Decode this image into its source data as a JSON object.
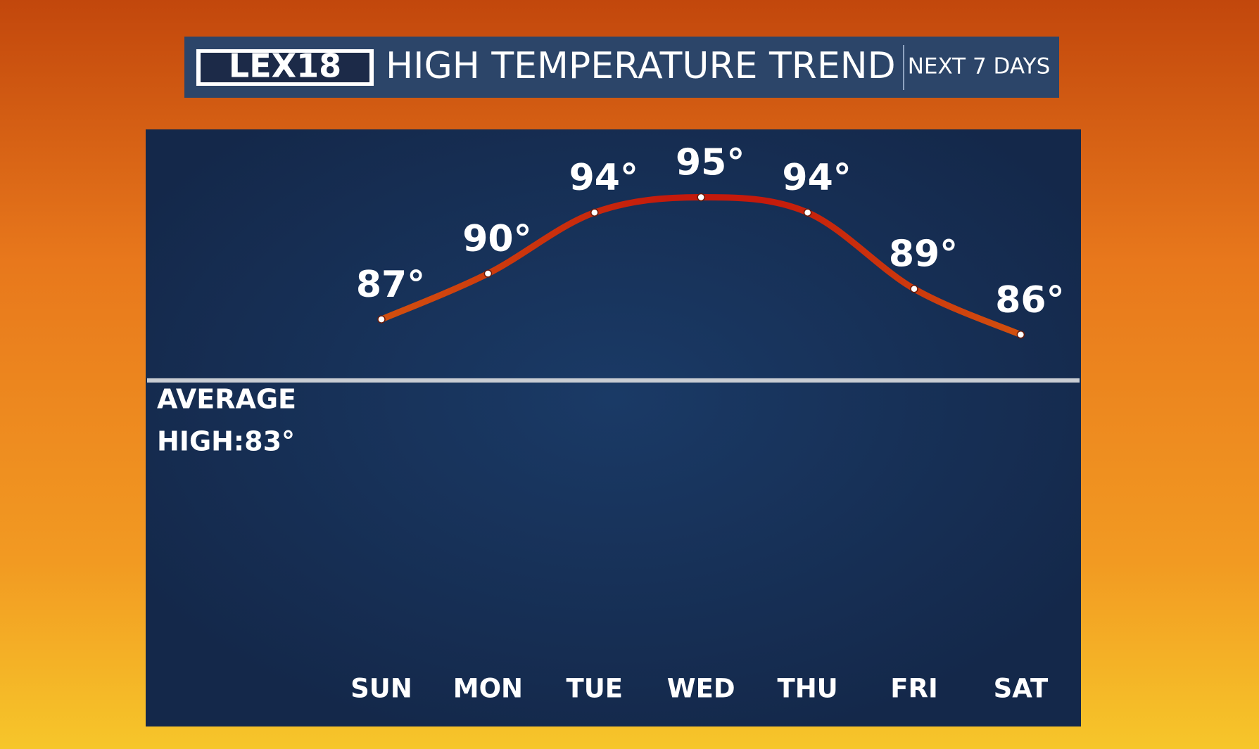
{
  "logo": "LEX18",
  "chart_data": {
    "type": "line",
    "title": "HIGH TEMPERATURE TREND",
    "subtitle": "NEXT 7 DAYS",
    "categories": [
      "SUN",
      "MON",
      "TUE",
      "WED",
      "THU",
      "FRI",
      "SAT"
    ],
    "values": [
      87,
      90,
      94,
      95,
      94,
      89,
      86
    ],
    "value_labels": [
      "87°",
      "90°",
      "94°",
      "95°",
      "94°",
      "89°",
      "86°"
    ],
    "ylim": [
      60,
      100
    ],
    "reference_line": {
      "value": 83,
      "label_lines": [
        "AVERAGE",
        "HIGH:83°"
      ]
    }
  }
}
